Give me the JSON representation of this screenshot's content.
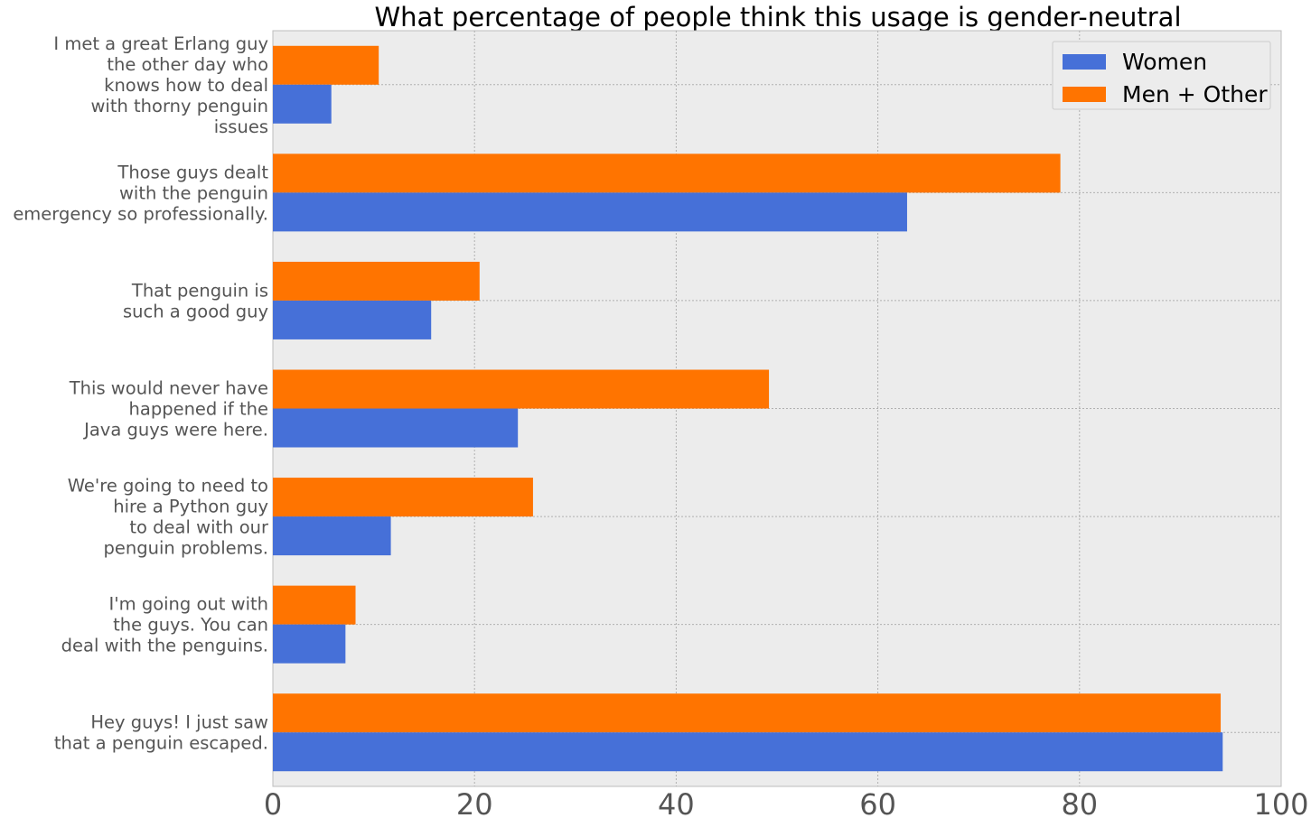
{
  "chart_data": {
    "type": "bar",
    "orientation": "horizontal",
    "title": "What percentage of people think this usage is gender-neutral",
    "xlabel": "",
    "ylabel": "",
    "xlim": [
      0,
      100
    ],
    "xticks": [
      0,
      20,
      40,
      60,
      80,
      100
    ],
    "grid": true,
    "legend_position": "top-right",
    "categories": [
      [
        "I met a great Erlang guy",
        "the other day who",
        "knows how to deal",
        "with thorny penguin",
        "issues"
      ],
      [
        "Those guys dealt",
        "with the penguin",
        "emergency so professionally."
      ],
      [
        "That penguin is",
        "such a good guy"
      ],
      [
        "This would never have",
        "happened if the",
        "Java guys were here."
      ],
      [
        "We're going to need to",
        "hire a Python guy",
        "to deal with our",
        "penguin problems."
      ],
      [
        "I'm going out with",
        "the guys. You can",
        "deal with the penguins."
      ],
      [
        "Hey guys! I just saw",
        "that a penguin escaped."
      ]
    ],
    "series": [
      {
        "name": "Women",
        "color": "#4670d8",
        "values": [
          5.8,
          62.9,
          15.7,
          24.3,
          11.7,
          7.2,
          94.2
        ]
      },
      {
        "name": "Men + Other",
        "color": "#ff7400",
        "values": [
          10.5,
          78.1,
          20.5,
          49.2,
          25.8,
          8.2,
          94.0
        ]
      }
    ]
  }
}
